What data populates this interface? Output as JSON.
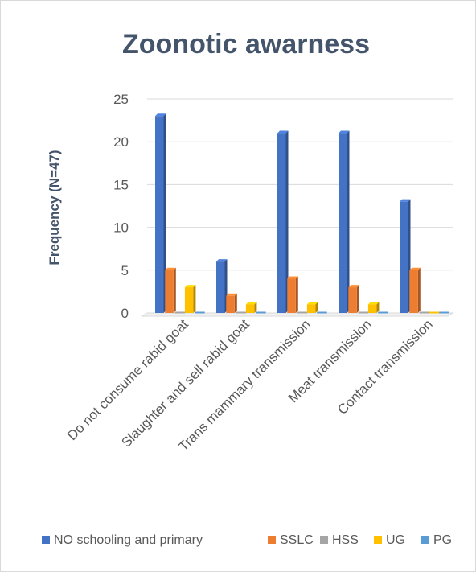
{
  "chart_data": {
    "type": "bar",
    "title": "Zoonotic awarness",
    "xlabel": "",
    "ylabel": "Frequency (N=47)",
    "ylim": [
      0,
      25
    ],
    "yticks": [
      0,
      5,
      10,
      15,
      20,
      25
    ],
    "grid": true,
    "legend_position": "bottom",
    "categories": [
      "Do not consume rabid goat",
      "Slaughter and sell rabid goat",
      "Trans mammary transmission",
      "Meat transmission",
      "Contact transmission"
    ],
    "series": [
      {
        "name": "NO schooling and primary",
        "color": "#4472c4",
        "values": [
          23,
          6,
          21,
          21,
          13
        ]
      },
      {
        "name": "SSLC",
        "color": "#ed7d31",
        "values": [
          5,
          2,
          4,
          3,
          5
        ]
      },
      {
        "name": "HSS",
        "color": "#a5a5a5",
        "values": [
          0,
          0,
          0,
          0,
          0
        ]
      },
      {
        "name": "UG",
        "color": "#ffc000",
        "values": [
          3,
          1,
          1,
          1,
          0
        ]
      },
      {
        "name": "PG",
        "color": "#5b9bd5",
        "values": [
          0,
          0,
          0,
          0,
          0
        ]
      }
    ]
  }
}
